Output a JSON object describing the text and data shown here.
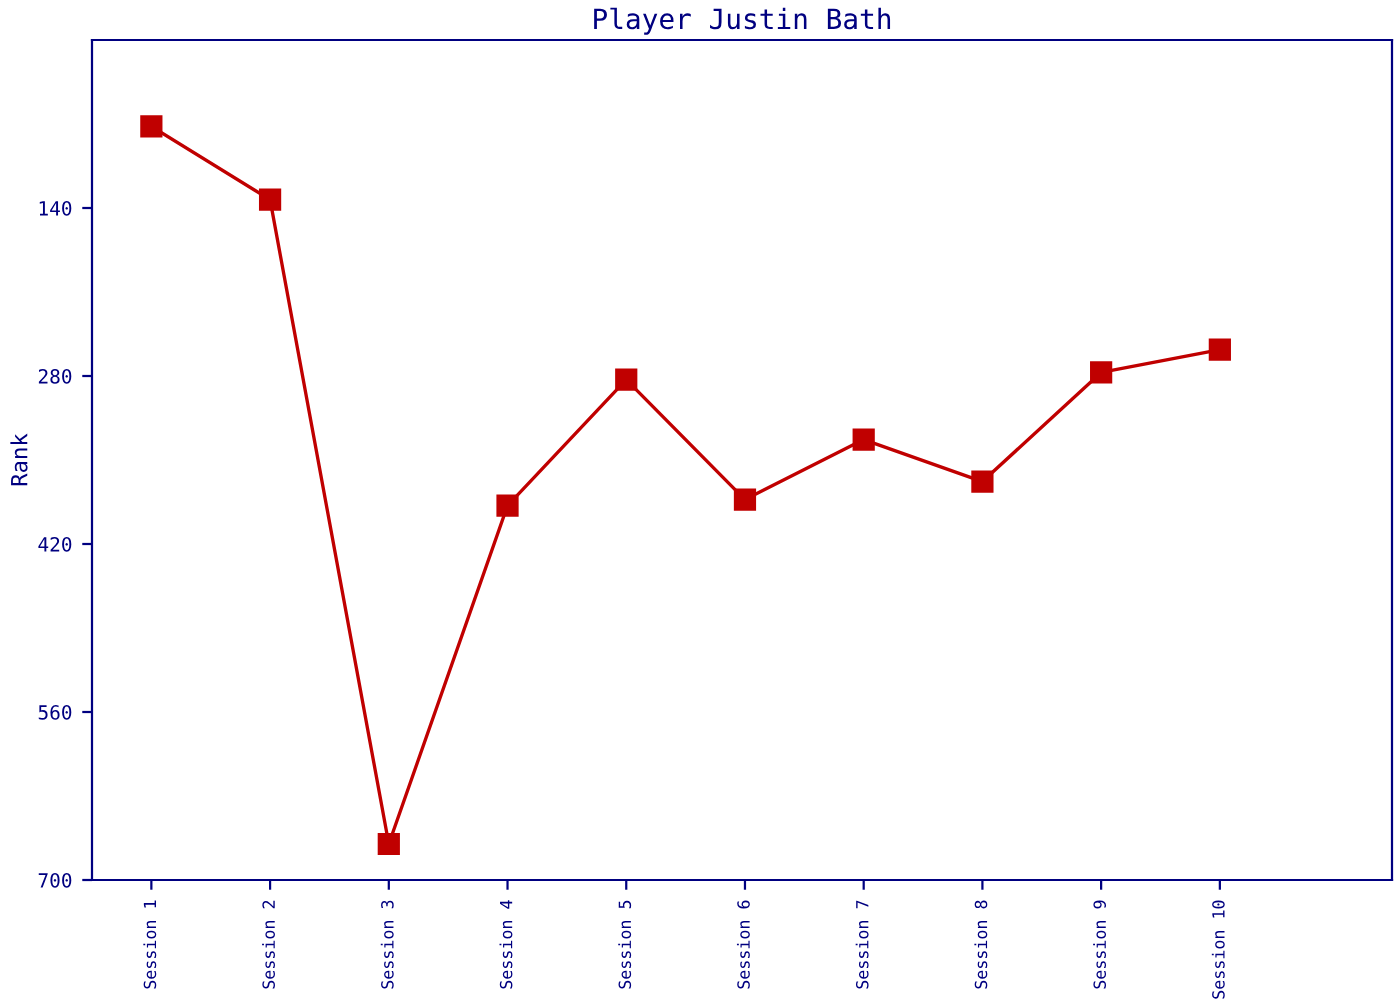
{
  "chart_data": {
    "type": "line",
    "title": "Player Justin Bath",
    "ylabel": "Rank",
    "categories": [
      "Session 1",
      "Session 2",
      "Session 3",
      "Session 4",
      "Session 5",
      "Session 6",
      "Session 7",
      "Session 8",
      "Session 9",
      "Session 10"
    ],
    "series": [
      {
        "color": "#c00000",
        "values": [
          72,
          133,
          670,
          388,
          283,
          383,
          333,
          368,
          277,
          258
        ]
      }
    ],
    "ylim": [
      700,
      0
    ],
    "yticks": [
      140,
      280,
      420,
      560,
      700
    ],
    "grid": false,
    "legend": false,
    "marker": "square",
    "line_style": "solid"
  }
}
